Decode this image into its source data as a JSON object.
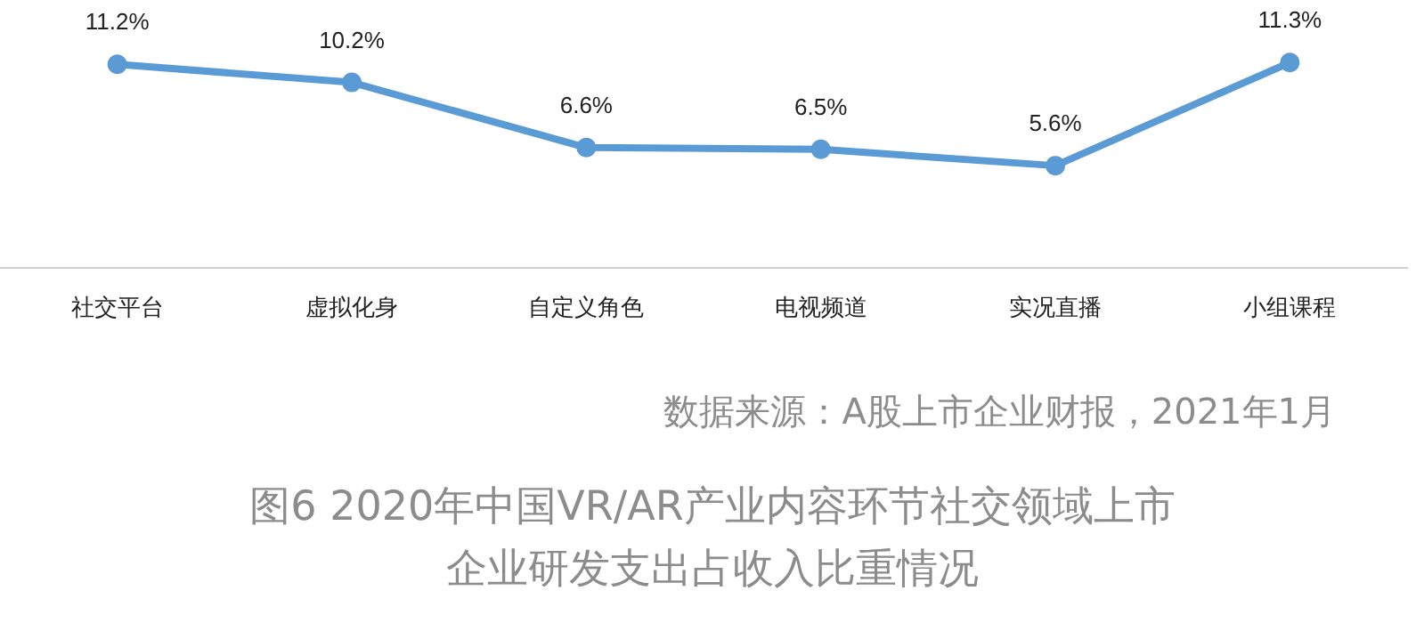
{
  "chart_data": {
    "type": "line",
    "title": "图6 2020年中国VR/AR产业内容环节社交领域上市企业研发支出占收入比重情况",
    "annotations": [
      "数据来源：A股上市企业财报，2021年1月"
    ],
    "categories": [
      "社交平台",
      "虚拟化身",
      "自定义角色",
      "电视频道",
      "实况直播",
      "小组课程"
    ],
    "series": [
      {
        "color": "#5b9bd5",
        "values": [
          11.2,
          10.2,
          6.6,
          6.5,
          5.6,
          11.3
        ],
        "value_labels": [
          "11.2%",
          "10.2%",
          "6.6%",
          "6.5%",
          "5.6%",
          "11.3%"
        ]
      }
    ],
    "marker": "circle"
  }
}
